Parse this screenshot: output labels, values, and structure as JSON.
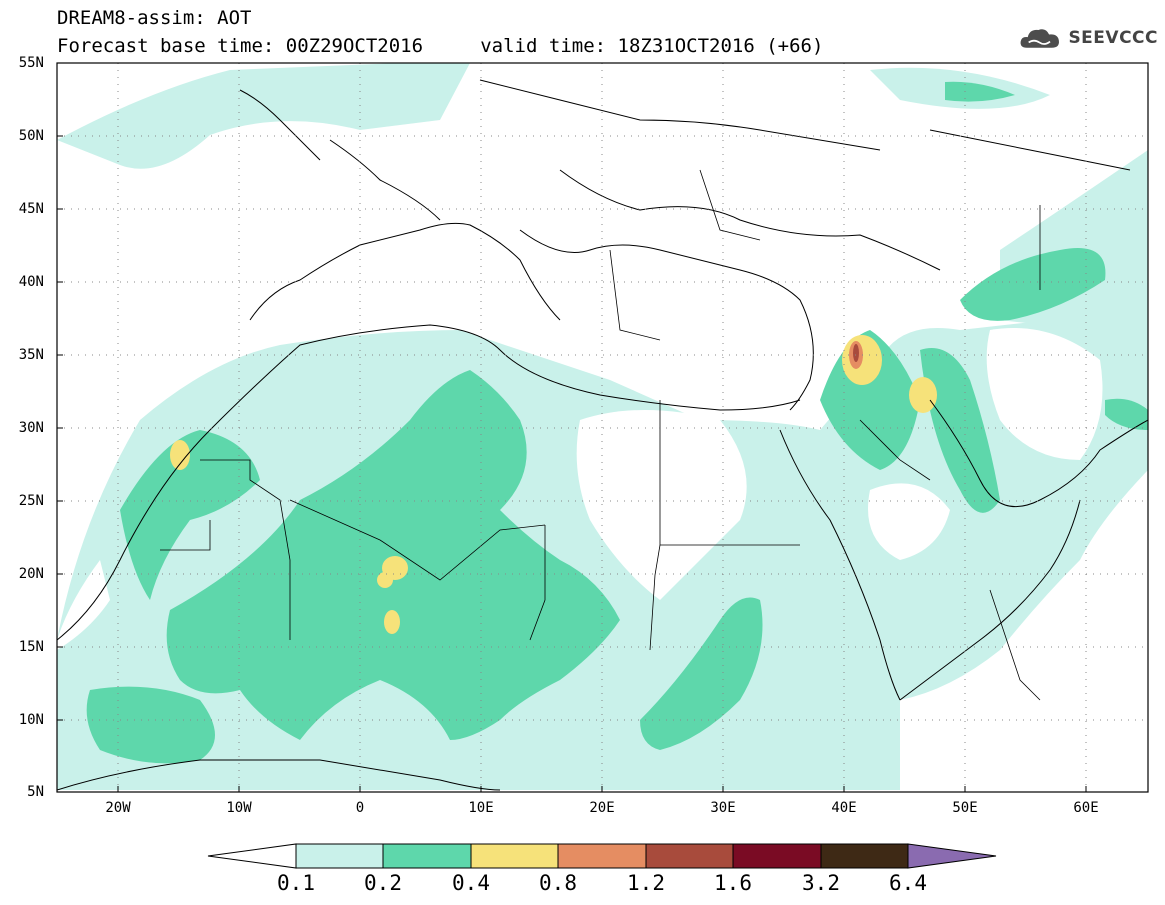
{
  "header": {
    "line1": "DREAM8-assim: AOT",
    "line2": "Forecast base time: 00Z29OCT2016     valid time: 18Z31OCT2016 (+66)"
  },
  "logo": {
    "text": "SEEVCCC",
    "icon": "cloud-icon"
  },
  "map": {
    "lat_labels": [
      "55N",
      "50N",
      "45N",
      "40N",
      "35N",
      "30N",
      "25N",
      "20N",
      "15N",
      "10N",
      "5N"
    ],
    "lon_labels": [
      "20W",
      "10W",
      "0",
      "10E",
      "20E",
      "30E",
      "40E",
      "50E",
      "60E"
    ]
  },
  "colorbar": {
    "levels": [
      "0.1",
      "0.2",
      "0.4",
      "0.8",
      "1.2",
      "1.6",
      "3.2",
      "6.4"
    ],
    "colors": [
      "#ffffff",
      "#c9f1ea",
      "#5ed7ab",
      "#f6e27a",
      "#e58d62",
      "#a84b3c",
      "#7a0b24",
      "#3e2915",
      "#8a6bb0"
    ]
  },
  "colors": {
    "low": "#c9f1ea",
    "mid": "#5ed7ab",
    "high": "#f6e27a",
    "very_high": "#e58d62",
    "peak": "#a84b3c"
  }
}
